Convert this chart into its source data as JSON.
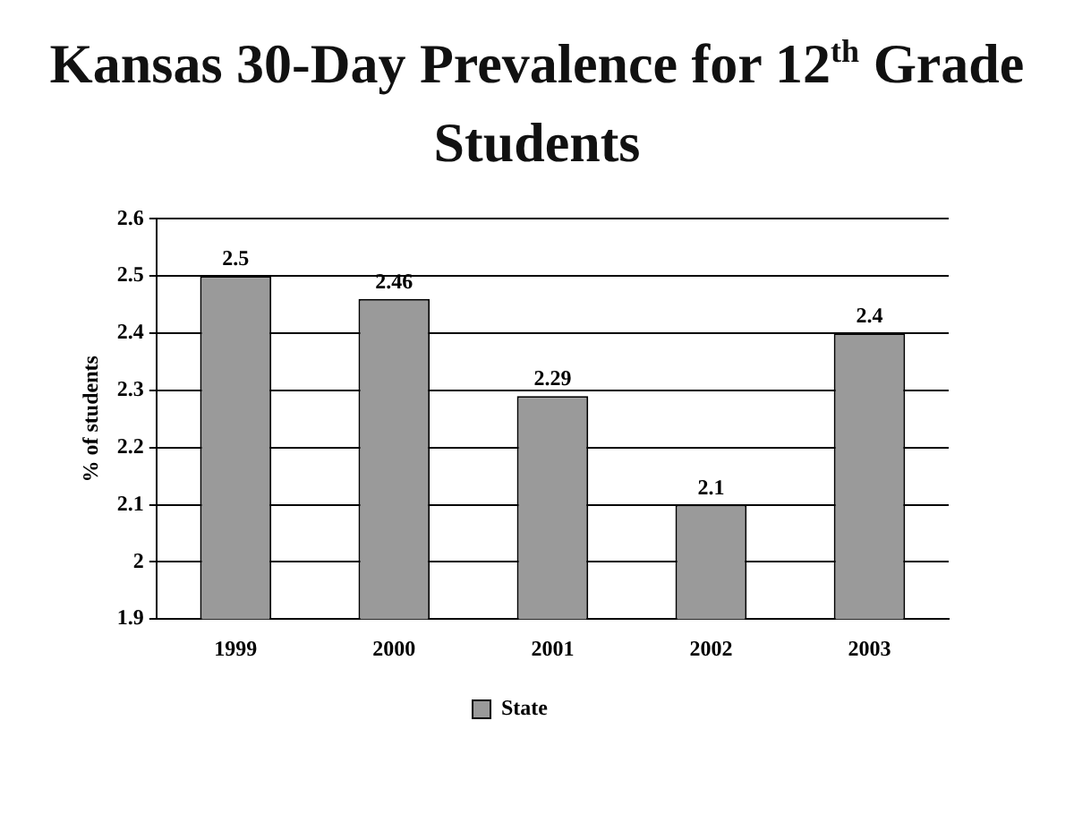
{
  "chart_data": {
    "type": "bar",
    "title": "Kansas 30-Day Prevalence for 12$^{th}$ Grade Students",
    "ylabel": "% of students",
    "categories": [
      "1999",
      "2000",
      "2001",
      "2002",
      "2003"
    ],
    "series": [
      {
        "name": "State",
        "color": "#9a9a9a",
        "values": [
          2.5,
          2.46,
          2.29,
          2.1,
          2.4
        ]
      }
    ],
    "ylim": [
      1.9,
      2.6
    ],
    "yticks": [
      1.9,
      2,
      2.1,
      2.2,
      2.3,
      2.4,
      2.5,
      2.6
    ],
    "grid": "y",
    "legend": "bottom",
    "data_labels": true
  }
}
